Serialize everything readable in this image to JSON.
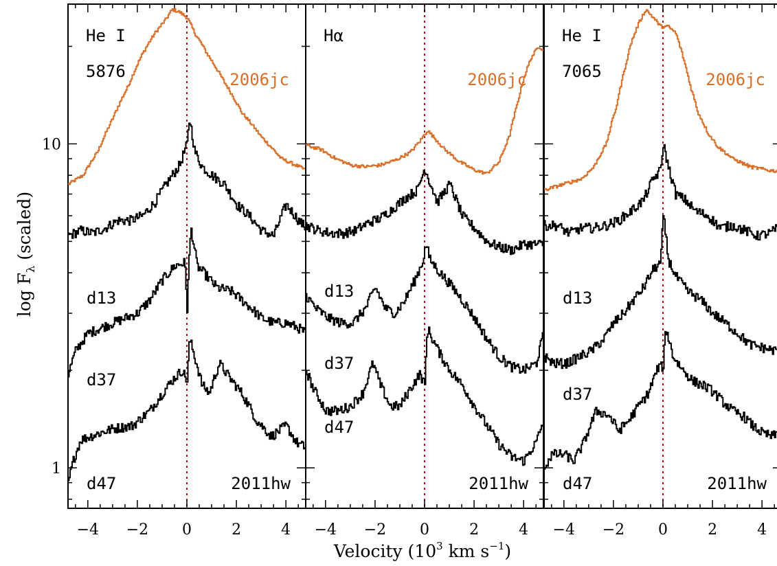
{
  "chart_data": {
    "type": "line",
    "title": "",
    "xlabel_main": "Velocity (10",
    "xlabel_sup": "3",
    "xlabel_tail": " km s",
    "xlabel_sup2": "−1",
    "xlabel_close": ")",
    "ylabel_main": "log F",
    "ylabel_sub": "λ",
    "ylabel_tail": " (scaled)",
    "xlim": [
      -4.8,
      4.8
    ],
    "ylim": [
      0.75,
      27
    ],
    "yscale": "log",
    "xticks": [
      -4,
      -2,
      0,
      2,
      4
    ],
    "xtick_labels": [
      "−4",
      "−2",
      "0",
      "2",
      "4"
    ],
    "yticks": [
      1,
      10
    ],
    "ytick_labels": [
      "1",
      "10"
    ],
    "reference_line_x": 0,
    "colors": {
      "sn2006jc": "#d8702a",
      "sn2011hw": "#000000",
      "reference": "#b01010"
    },
    "panels": [
      {
        "name": "He I 5876",
        "label_line1": "He I",
        "label_line2": "5876",
        "top_label": "2006jc",
        "bottom_label": "2011hw",
        "series": [
          {
            "name": "2006jc",
            "color": "#d8702a",
            "x": [
              -4.8,
              -4.2,
              -3.6,
              -3.0,
              -2.4,
              -1.8,
              -1.3,
              -0.9,
              -0.6,
              -0.3,
              0.0,
              0.3,
              0.8,
              1.5,
              2.2,
              3.0,
              3.8,
              4.8
            ],
            "y": [
              7.5,
              8.0,
              9.5,
              12,
              15,
              19,
              22,
              24,
              26,
              25.5,
              24.5,
              22,
              19,
              15.5,
              12.5,
              10.5,
              9.0,
              8.3
            ]
          },
          {
            "name": "d13",
            "color": "#000000",
            "x": [
              -4.8,
              -4.3,
              -3.8,
              -3.3,
              -2.8,
              -2.3,
              -1.8,
              -1.3,
              -0.8,
              -0.3,
              0.0,
              0.1,
              0.3,
              0.6,
              1.0,
              1.5,
              2.0,
              2.5,
              3.0,
              3.5,
              4.0,
              4.5,
              4.8
            ],
            "y": [
              5.2,
              5.4,
              5.3,
              5.5,
              5.8,
              5.8,
              6.0,
              6.6,
              7.6,
              8.6,
              10.0,
              12.0,
              9.5,
              8.5,
              8.0,
              7.5,
              6.5,
              6.0,
              5.4,
              5.2,
              6.5,
              5.8,
              5.5
            ]
          },
          {
            "name": "d37",
            "color": "#000000",
            "x": [
              -4.8,
              -4.5,
              -4.0,
              -3.5,
              -3.0,
              -2.5,
              -2.0,
              -1.5,
              -1.0,
              -0.5,
              -0.1,
              0.0,
              0.15,
              0.4,
              0.8,
              1.2,
              1.8,
              2.4,
              3.0,
              3.5,
              4.0,
              4.5,
              4.8
            ],
            "y": [
              1.95,
              2.3,
              2.6,
              2.7,
              2.8,
              2.9,
              3.0,
              3.3,
              3.8,
              4.2,
              4.3,
              3.1,
              5.5,
              4.2,
              3.9,
              3.6,
              3.5,
              3.2,
              2.9,
              2.8,
              2.8,
              2.7,
              2.6
            ]
          },
          {
            "name": "d47",
            "color": "#000000",
            "x": [
              -4.8,
              -4.6,
              -4.3,
              -3.8,
              -3.0,
              -2.2,
              -1.5,
              -1.0,
              -0.5,
              -0.2,
              0.0,
              0.1,
              0.3,
              0.6,
              0.9,
              1.3,
              1.7,
              2.2,
              2.8,
              3.4,
              4.0,
              4.4,
              4.8
            ],
            "y": [
              0.9,
              1.05,
              1.22,
              1.26,
              1.32,
              1.35,
              1.5,
              1.7,
              1.9,
              2.0,
              1.85,
              2.5,
              2.2,
              1.8,
              1.7,
              2.1,
              1.9,
              1.7,
              1.4,
              1.25,
              1.35,
              1.2,
              1.15
            ]
          }
        ],
        "series_labels": [
          "d13",
          "d37",
          "d47"
        ]
      },
      {
        "name": "Hα",
        "label_line1": "Hα",
        "label_line2": "",
        "top_label": "2006jc",
        "bottom_label": "2011hw",
        "series": [
          {
            "name": "2006jc",
            "color": "#d8702a",
            "x": [
              -4.8,
              -4.2,
              -3.6,
              -3.0,
              -2.4,
              -1.8,
              -1.2,
              -0.6,
              -0.2,
              0.1,
              0.4,
              0.8,
              1.4,
              2.0,
              2.5,
              3.0,
              3.4,
              3.7,
              4.0,
              4.3,
              4.6,
              4.8
            ],
            "y": [
              9.9,
              9.6,
              9.0,
              8.6,
              8.5,
              8.6,
              8.9,
              9.4,
              10.2,
              11.0,
              10.4,
              9.6,
              8.8,
              8.3,
              8.1,
              8.8,
              10.5,
              13.0,
              16.0,
              18.5,
              20.0,
              19.5
            ]
          },
          {
            "name": "d13",
            "color": "#000000",
            "x": [
              -4.8,
              -4.3,
              -3.8,
              -3.3,
              -2.8,
              -2.3,
              -1.8,
              -1.3,
              -0.8,
              -0.3,
              0.0,
              0.2,
              0.5,
              1.0,
              1.5,
              2.0,
              2.5,
              3.0,
              3.5,
              4.0,
              4.5,
              4.8
            ],
            "y": [
              5.6,
              5.4,
              5.3,
              5.3,
              5.4,
              5.7,
              5.9,
              6.3,
              6.8,
              7.2,
              8.4,
              7.6,
              6.6,
              7.5,
              6.0,
              5.5,
              5.0,
              4.8,
              4.7,
              4.9,
              4.9,
              4.9
            ]
          },
          {
            "name": "d37",
            "color": "#000000",
            "x": [
              -4.8,
              -4.4,
              -3.9,
              -3.4,
              -2.9,
              -2.4,
              -2.0,
              -1.6,
              -1.2,
              -0.8,
              -0.4,
              -0.1,
              0.05,
              0.2,
              0.6,
              1.0,
              1.5,
              2.0,
              2.5,
              3.0,
              3.5,
              4.0,
              4.5,
              4.8
            ],
            "y": [
              3.4,
              3.1,
              2.9,
              2.8,
              2.8,
              3.1,
              3.6,
              3.1,
              3.0,
              3.3,
              3.8,
              4.3,
              4.9,
              4.4,
              4.0,
              3.7,
              3.3,
              2.9,
              2.5,
              2.2,
              2.05,
              2.0,
              2.1,
              2.6
            ]
          },
          {
            "name": "d47",
            "color": "#000000",
            "x": [
              -4.8,
              -4.5,
              -4.0,
              -3.5,
              -3.0,
              -2.5,
              -2.1,
              -1.8,
              -1.4,
              -1.0,
              -0.6,
              -0.2,
              0.0,
              0.1,
              0.3,
              0.6,
              1.0,
              1.5,
              2.0,
              2.5,
              3.0,
              3.5,
              4.0,
              4.5,
              4.8
            ],
            "y": [
              2.0,
              1.75,
              1.5,
              1.5,
              1.55,
              1.7,
              2.1,
              1.8,
              1.55,
              1.55,
              1.75,
              1.95,
              1.8,
              2.7,
              2.5,
              2.25,
              2.0,
              1.8,
              1.55,
              1.35,
              1.18,
              1.08,
              1.05,
              1.2,
              1.4
            ]
          }
        ],
        "series_labels": [
          "d13",
          "d37",
          "d47"
        ]
      },
      {
        "name": "He I 7065",
        "label_line1": "He I",
        "label_line2": "7065",
        "top_label": "2006jc",
        "bottom_label": "2011hw",
        "series": [
          {
            "name": "2006jc",
            "color": "#d8702a",
            "x": [
              -4.8,
              -4.3,
              -3.8,
              -3.3,
              -2.8,
              -2.3,
              -1.9,
              -1.6,
              -1.3,
              -1.0,
              -0.7,
              -0.4,
              -0.1,
              0.2,
              0.5,
              0.8,
              1.1,
              1.4,
              1.8,
              2.2,
              2.8,
              3.5,
              4.2,
              4.8
            ],
            "y": [
              7.2,
              7.4,
              7.6,
              7.8,
              8.5,
              10.0,
              13.0,
              16.5,
              20.5,
              23.5,
              26.0,
              24.5,
              23.0,
              23.0,
              22.0,
              18.5,
              15.0,
              12.5,
              10.8,
              9.8,
              9.0,
              8.5,
              8.3,
              8.2
            ]
          },
          {
            "name": "d13",
            "color": "#000000",
            "x": [
              -4.8,
              -4.3,
              -3.8,
              -3.3,
              -2.8,
              -2.3,
              -1.8,
              -1.3,
              -0.8,
              -0.4,
              -0.1,
              0.0,
              0.2,
              0.5,
              0.9,
              1.3,
              1.8,
              2.3,
              2.8,
              3.3,
              3.8,
              4.3,
              4.8
            ],
            "y": [
              5.6,
              5.6,
              5.3,
              5.5,
              5.5,
              5.6,
              5.8,
              6.2,
              6.7,
              7.8,
              8.3,
              10.0,
              8.5,
              7.0,
              6.7,
              6.2,
              6.0,
              5.5,
              5.6,
              5.4,
              5.2,
              5.3,
              5.6
            ]
          },
          {
            "name": "d37",
            "color": "#000000",
            "x": [
              -4.8,
              -4.4,
              -3.9,
              -3.4,
              -2.9,
              -2.4,
              -2.0,
              -1.6,
              -1.2,
              -0.8,
              -0.4,
              -0.1,
              0.0,
              0.2,
              0.5,
              1.0,
              1.5,
              2.0,
              2.5,
              3.0,
              3.5,
              4.0,
              4.5,
              4.8
            ],
            "y": [
              2.2,
              2.1,
              2.1,
              2.2,
              2.3,
              2.5,
              2.8,
              3.0,
              3.3,
              3.6,
              4.1,
              4.3,
              6.0,
              4.4,
              3.9,
              3.5,
              3.3,
              3.0,
              2.8,
              2.6,
              2.4,
              2.35,
              2.3,
              2.3
            ]
          },
          {
            "name": "d47",
            "color": "#000000",
            "x": [
              -4.8,
              -4.5,
              -4.0,
              -3.6,
              -3.2,
              -2.7,
              -2.2,
              -1.8,
              -1.4,
              -1.0,
              -0.6,
              -0.2,
              0.0,
              0.1,
              0.4,
              0.8,
              1.2,
              1.6,
              2.0,
              2.4,
              2.8,
              3.2,
              3.6,
              4.0,
              4.4,
              4.8
            ],
            "y": [
              1.0,
              1.1,
              1.1,
              1.05,
              1.2,
              1.5,
              1.45,
              1.3,
              1.4,
              1.55,
              1.7,
              2.05,
              2.05,
              2.7,
              2.2,
              2.0,
              1.85,
              1.8,
              1.72,
              1.6,
              1.5,
              1.45,
              1.35,
              1.28,
              1.25,
              1.3
            ]
          }
        ],
        "series_labels": [
          "d13",
          "d37",
          "d47"
        ]
      }
    ]
  }
}
